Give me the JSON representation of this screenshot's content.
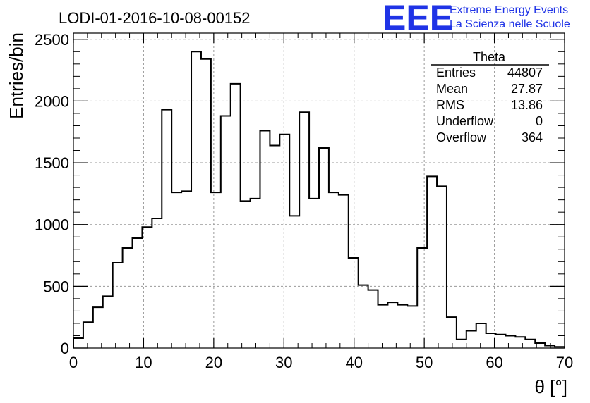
{
  "chart_data": {
    "type": "bar",
    "title": "LODI-01-2016-10-08-00152",
    "xlabel": "θ [°]",
    "ylabel": "Entries/bin",
    "xlim": [
      0,
      70
    ],
    "ylim": [
      0,
      2550
    ],
    "bin_width": 1.4,
    "xticks": [
      "0",
      "10",
      "20",
      "30",
      "40",
      "50",
      "60",
      "70"
    ],
    "yticks": [
      "0",
      "500",
      "1000",
      "1500",
      "2000",
      "2500"
    ],
    "grid": true,
    "values": [
      80,
      210,
      330,
      420,
      690,
      810,
      890,
      980,
      1050,
      1930,
      1260,
      1270,
      2400,
      2340,
      1260,
      1880,
      2140,
      1190,
      1210,
      1760,
      1640,
      1730,
      1070,
      1910,
      1210,
      1620,
      1260,
      1240,
      730,
      510,
      470,
      350,
      370,
      350,
      340,
      810,
      1390,
      1310,
      250,
      70,
      140,
      200,
      120,
      110,
      100,
      90,
      70,
      40,
      20,
      10
    ]
  },
  "stats_box": {
    "title": "Theta",
    "rows": [
      {
        "label": "Entries",
        "value": "44807"
      },
      {
        "label": "Mean",
        "value": "27.87"
      },
      {
        "label": "RMS",
        "value": "13.86"
      },
      {
        "label": "Underflow",
        "value": "0"
      },
      {
        "label": "Overflow",
        "value": "364"
      }
    ]
  },
  "logo": {
    "big": "EEE",
    "line1": "Extreme Energy Events",
    "line2": "La Scienza nelle Scuole",
    "color": "#1f33e6"
  }
}
